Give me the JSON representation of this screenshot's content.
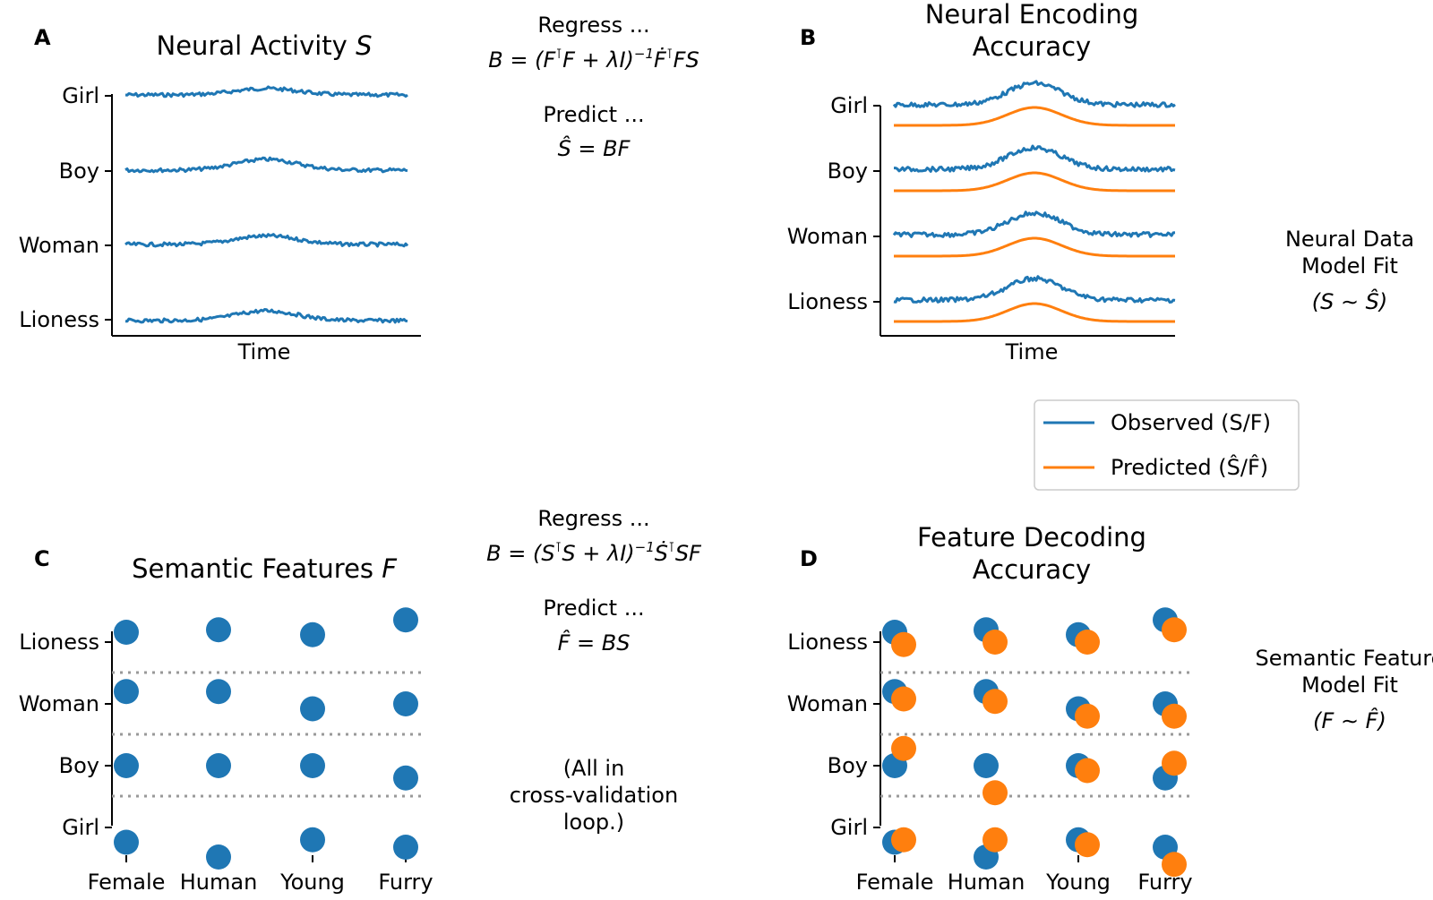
{
  "colors": {
    "observed": "#1f77b4",
    "predicted": "#ff7f0e",
    "grid": "#999999",
    "axis": "#000000"
  },
  "panels": {
    "A": {
      "letter": "A",
      "title_main": "Neural Activity ",
      "title_var": "S",
      "xlabel": "Time"
    },
    "B": {
      "letter": "B",
      "title_line1": "Neural Encoding",
      "title_line2": "Accuracy",
      "xlabel": "Time"
    },
    "C": {
      "letter": "C",
      "title_main": "Semantic Features ",
      "title_var": "F"
    },
    "D": {
      "letter": "D",
      "title_line1": "Feature Decoding",
      "title_line2": "Accuracy"
    }
  },
  "middle_top": {
    "regress": "Regress ...",
    "eq_pre": "B = (F",
    "eq_t1": "⊺",
    "eq_mid1": "F + λI)",
    "eq_exp": "−1",
    "eq_mid2": "Ḟ",
    "eq_t2": "⊺",
    "eq_end": "FS",
    "predict": "Predict ...",
    "pred_eq": "Ŝ = BF"
  },
  "middle_bottom": {
    "regress": "Regress ...",
    "eq_pre": "B = (S",
    "eq_t1": "⊺",
    "eq_mid1": "S + λI)",
    "eq_exp": "−1",
    "eq_mid2": "Ṡ",
    "eq_t2": "⊺",
    "eq_end": "SF",
    "predict": "Predict ...",
    "pred_eq": "F̂ = BS",
    "note_line1": "(All in",
    "note_line2": "cross-validation",
    "note_line3": "loop.)"
  },
  "side_top": {
    "line1": "Neural Data",
    "line2": "Model Fit",
    "line3": "(S ∼ Ŝ)"
  },
  "side_bottom": {
    "line1": "Semantic Feature",
    "line2": "Model Fit",
    "line3": "(F ∼ F̂)"
  },
  "legend": {
    "observed": "Observed (S/F)",
    "predicted": "Predicted (Ŝ/F̂)"
  },
  "chart_data": [
    {
      "panel": "A",
      "type": "line",
      "title": "Neural Activity S",
      "xlabel": "Time",
      "categories": [
        "Girl",
        "Boy",
        "Woman",
        "Lioness"
      ],
      "series": [
        {
          "name": "Observed (S/F)",
          "shape": "noisy gaussian bump"
        }
      ],
      "bump_amplitude": [
        0.6,
        1.0,
        0.8,
        0.9
      ]
    },
    {
      "panel": "B",
      "type": "line",
      "title": "Neural Encoding Accuracy",
      "xlabel": "Time",
      "categories": [
        "Girl",
        "Boy",
        "Woman",
        "Lioness"
      ],
      "series": [
        {
          "name": "Observed (S/F)",
          "shape": "noisy gaussian bump"
        },
        {
          "name": "Predicted (Ŝ/F̂)",
          "shape": "smooth gaussian bump"
        }
      ],
      "observed_amplitude": [
        1.0,
        1.0,
        1.0,
        1.0
      ],
      "predicted_amplitude": [
        1.0,
        1.0,
        1.0,
        1.0
      ]
    },
    {
      "panel": "C",
      "type": "scatter",
      "title": "Semantic Features F",
      "categories": [
        "Female",
        "Human",
        "Young",
        "Furry"
      ],
      "rows": [
        "Lioness",
        "Woman",
        "Boy",
        "Girl"
      ],
      "observed": [
        [
          0.2,
          0.25,
          0.15,
          0.45
        ],
        [
          0.25,
          0.25,
          -0.1,
          0.0
        ],
        [
          0.0,
          0.0,
          0.0,
          -0.25
        ],
        [
          -0.3,
          -0.6,
          -0.25,
          -0.4
        ]
      ]
    },
    {
      "panel": "D",
      "type": "scatter",
      "title": "Feature Decoding Accuracy",
      "categories": [
        "Female",
        "Human",
        "Young",
        "Furry"
      ],
      "rows": [
        "Lioness",
        "Woman",
        "Boy",
        "Girl"
      ],
      "observed": [
        [
          0.2,
          0.25,
          0.15,
          0.45
        ],
        [
          0.25,
          0.25,
          -0.1,
          0.0
        ],
        [
          0.0,
          0.0,
          0.0,
          -0.25
        ],
        [
          -0.3,
          -0.6,
          -0.25,
          -0.4
        ]
      ],
      "predicted": [
        [
          -0.05,
          0.0,
          0.0,
          0.25
        ],
        [
          0.1,
          0.05,
          -0.25,
          -0.25
        ],
        [
          0.35,
          -0.55,
          -0.1,
          0.05
        ],
        [
          -0.25,
          -0.25,
          -0.35,
          -0.75
        ]
      ]
    }
  ]
}
